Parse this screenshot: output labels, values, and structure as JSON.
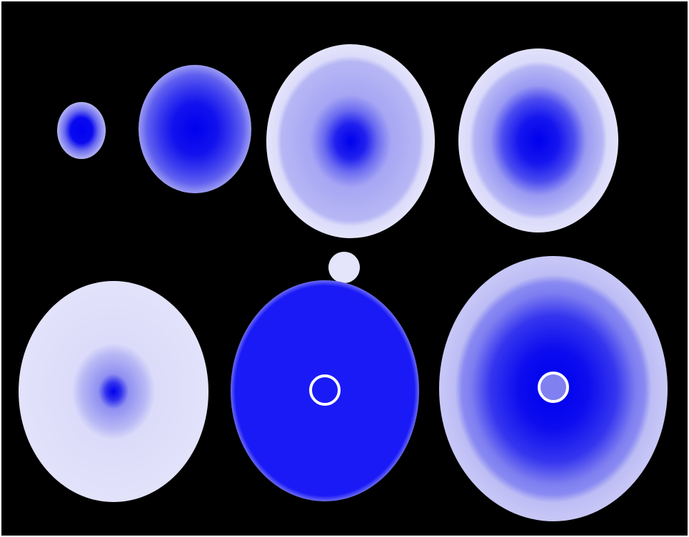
{
  "colors": {
    "background": "#000000",
    "border": "#ffffff",
    "outer_pale": "#e0e0fb",
    "ring_light": "#b9b9f5",
    "ring_mid": "#8a8af2",
    "ring_strong": "#5a5af0",
    "core_blue": "#0000f2",
    "solid_blue": "#1a1af7",
    "marker_fill": "#8080f0",
    "marker_ring": "#ffffff"
  },
  "diagram": {
    "ellipse_count": 7,
    "marker_count": 3,
    "description_tags": [
      "concentric-gradient-ellipses",
      "blue-scale"
    ]
  }
}
